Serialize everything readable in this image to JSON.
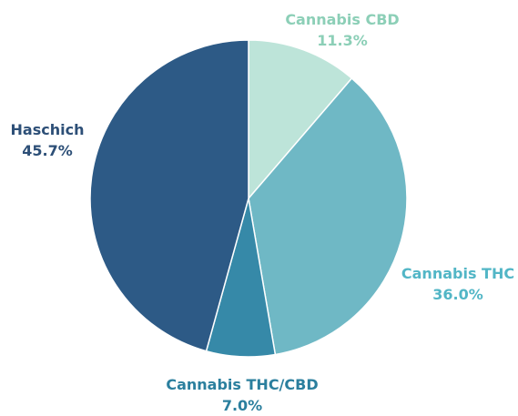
{
  "chart_data": {
    "type": "pie",
    "slices": [
      {
        "label": "Cannabis CBD",
        "value": 11.3,
        "value_label": "11.3%",
        "color": "#bde4d9",
        "label_color": "#8ccfb7"
      },
      {
        "label": "Cannabis THC",
        "value": 36.0,
        "value_label": "36.0%",
        "color": "#6fb8c5",
        "label_color": "#52b6c6"
      },
      {
        "label": "Cannabis THC/CBD",
        "value": 7.0,
        "value_label": "7.0%",
        "color": "#3689a8",
        "label_color": "#2b7f9e"
      },
      {
        "label": "Haschich",
        "value": 45.7,
        "value_label": "45.7%",
        "color": "#2d5a86",
        "label_color": "#2d4f77"
      }
    ],
    "start": "top",
    "direction": "clockwise",
    "labels": "outside"
  }
}
